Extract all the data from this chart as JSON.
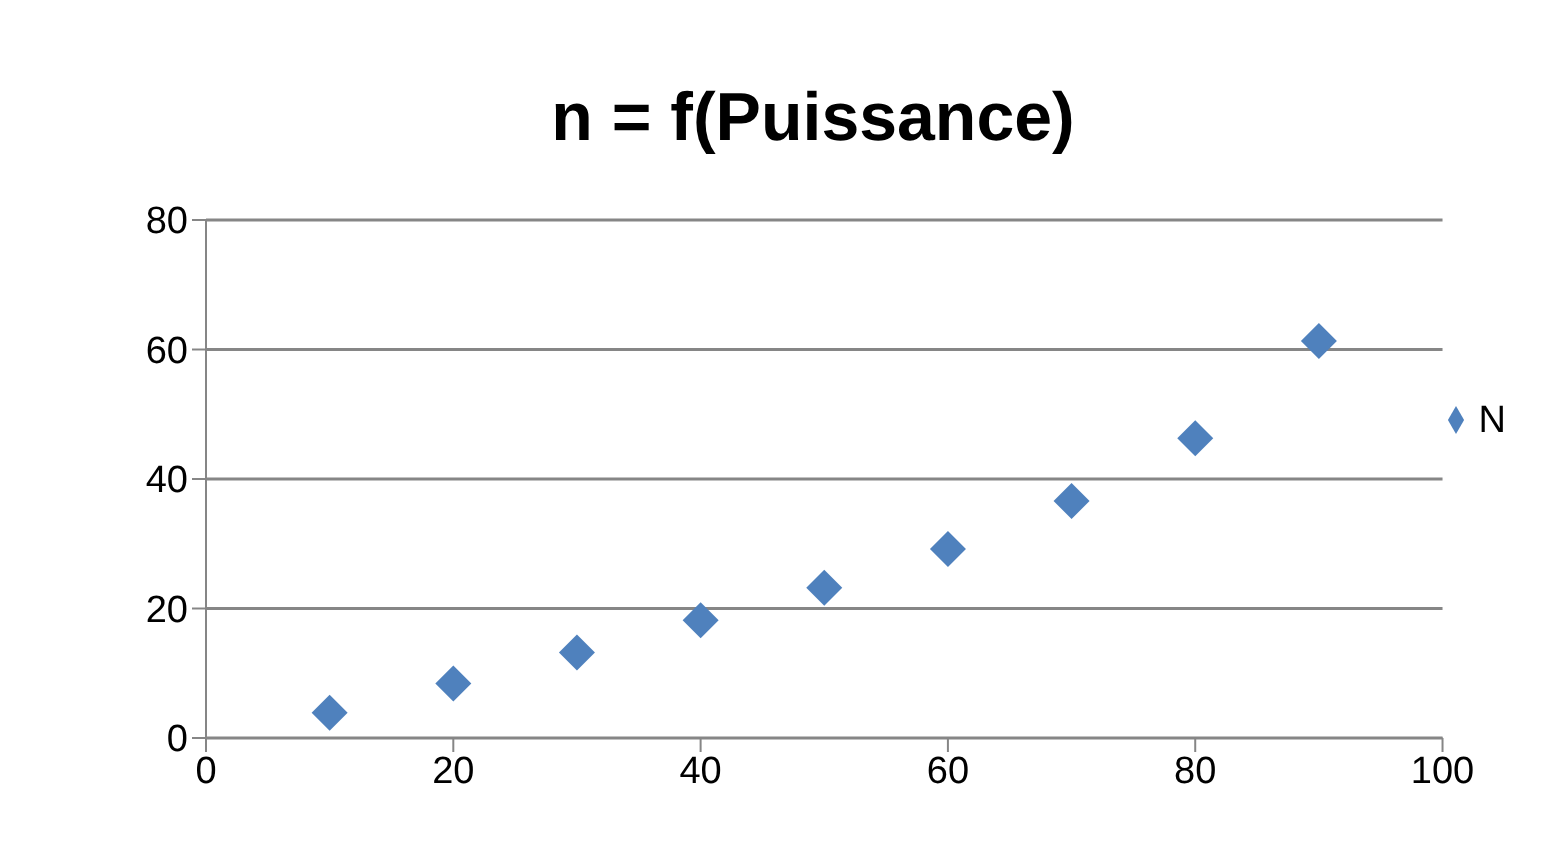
{
  "chart_data": {
    "type": "scatter",
    "title": "n = f(Puissance)",
    "x": [
      10,
      20,
      30,
      40,
      50,
      60,
      70,
      80,
      90
    ],
    "series": [
      {
        "name": "N",
        "color": "#4f81bd",
        "values": [
          3.9,
          8.4,
          13.2,
          18.2,
          23.2,
          29.2,
          36.6,
          46.3,
          61.3
        ]
      }
    ],
    "xlim": [
      0,
      100
    ],
    "xticks": [
      0,
      20,
      40,
      60,
      80,
      100
    ],
    "ylim": [
      0,
      80
    ],
    "yticks": [
      0,
      20,
      40,
      60,
      80
    ],
    "grid": "y",
    "legend": "right",
    "marker": "diamond"
  }
}
